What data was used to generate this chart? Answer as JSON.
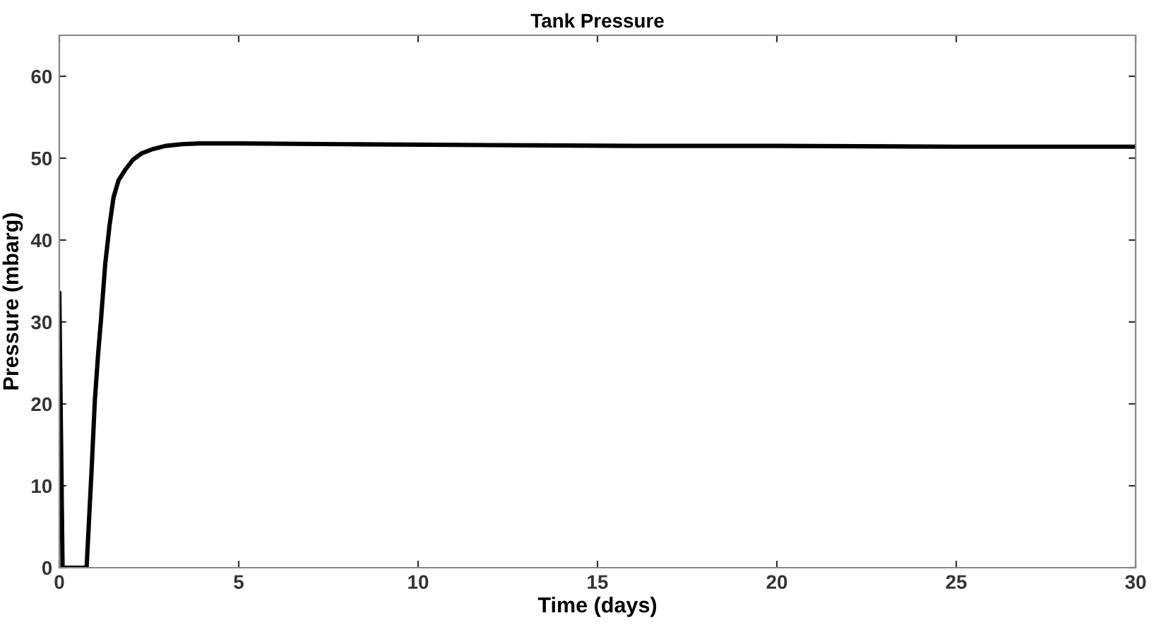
{
  "chart_data": {
    "type": "line",
    "title": "Tank Pressure",
    "xlabel": "Time (days)",
    "ylabel": "Pressure (mbarg)",
    "xlim": [
      0,
      30
    ],
    "ylim": [
      0,
      65
    ],
    "xticks": [
      0,
      5,
      10,
      15,
      20,
      25,
      30
    ],
    "yticks": [
      0,
      10,
      20,
      30,
      40,
      50,
      60
    ],
    "grid": false,
    "series": [
      {
        "color": "#000000",
        "x": [
          0,
          0.09,
          0.76,
          0.9,
          0.99,
          1.08,
          1.16,
          1.28,
          1.4,
          1.51,
          1.65,
          1.84,
          2.05,
          2.3,
          2.6,
          2.96,
          3.4,
          3.9,
          5,
          8,
          12,
          16,
          20,
          25,
          30
        ],
        "values": [
          33.5,
          0,
          0,
          12,
          20.4,
          26,
          30.2,
          37.1,
          41.8,
          45.2,
          47.3,
          48.6,
          49.8,
          50.6,
          51.1,
          51.5,
          51.7,
          51.8,
          51.8,
          51.7,
          51.6,
          51.5,
          51.5,
          51.4,
          51.4
        ]
      }
    ]
  }
}
